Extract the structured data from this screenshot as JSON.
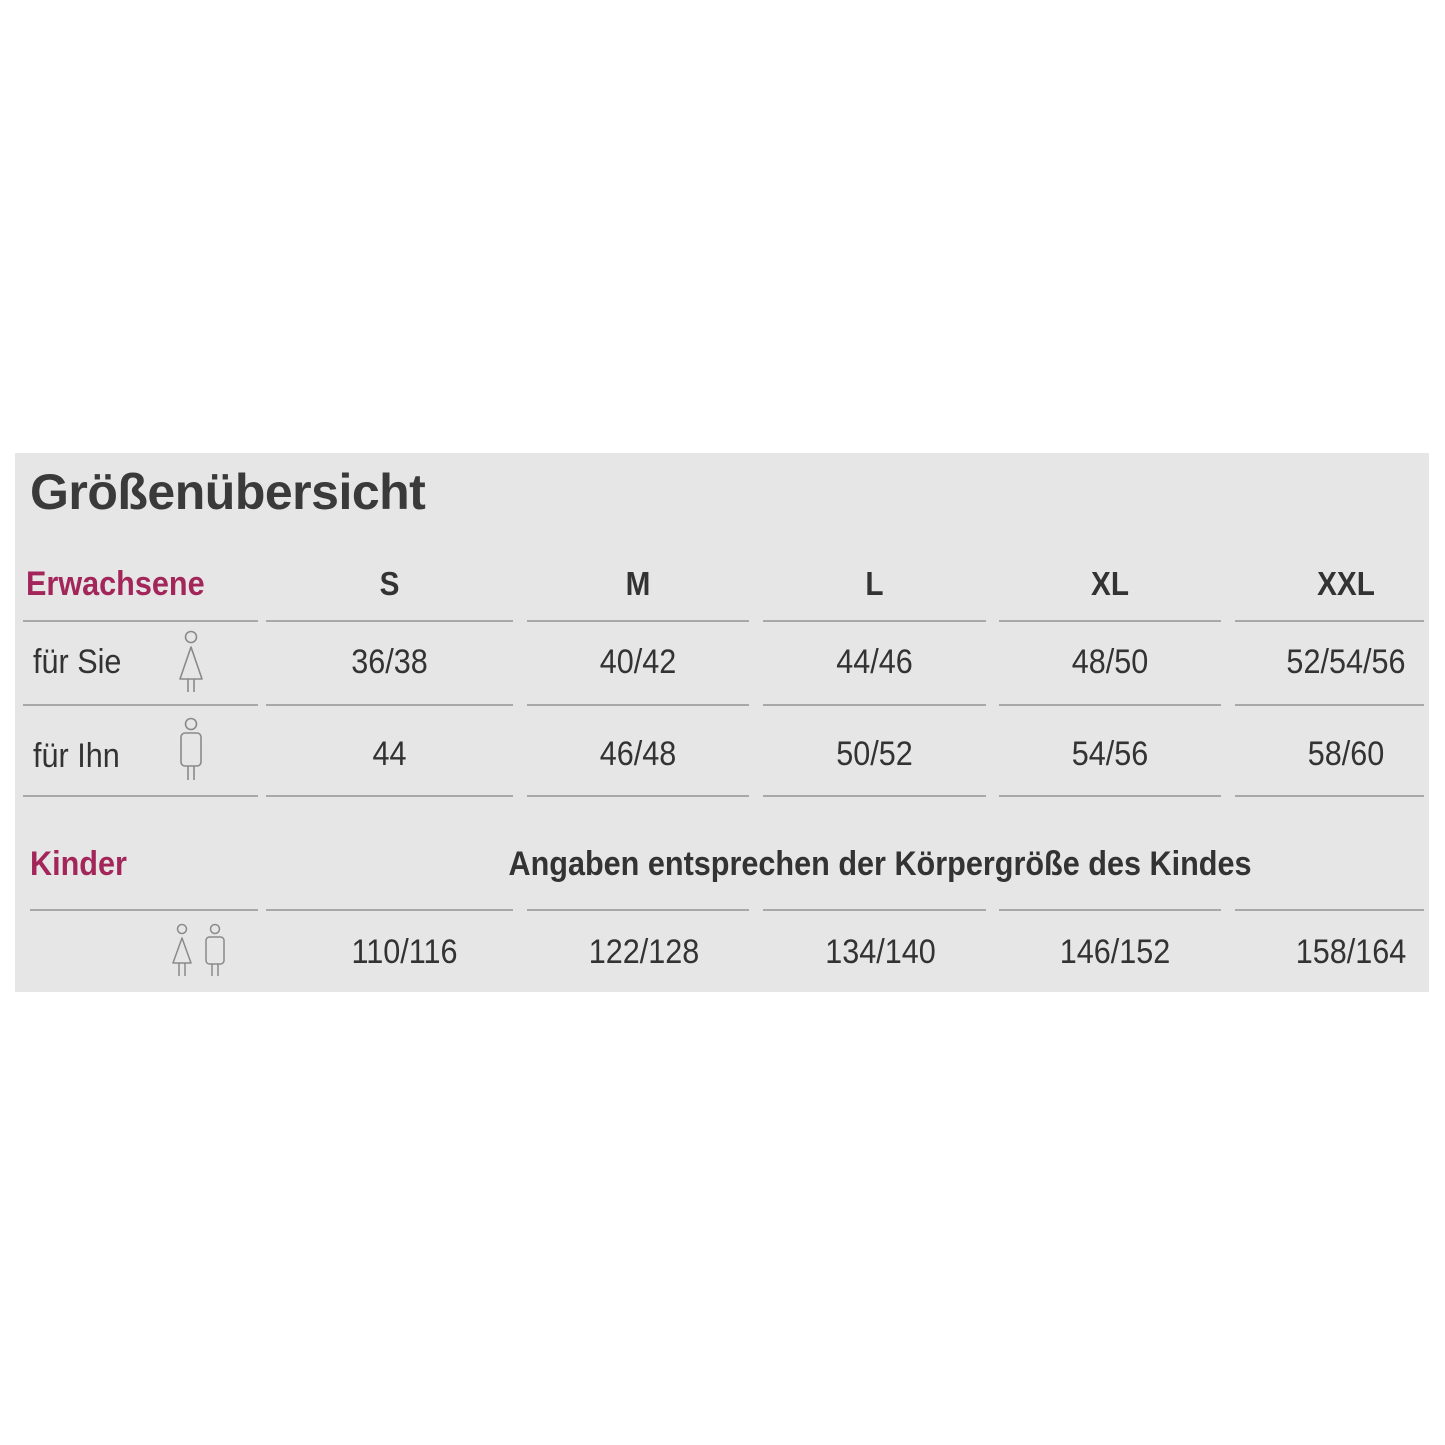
{
  "title": "Größenübersicht",
  "adults": {
    "label": "Erwachsene",
    "sizes": [
      "S",
      "M",
      "L",
      "XL",
      "XXL"
    ],
    "rows": [
      {
        "label": "für Sie",
        "icon": "woman-icon",
        "values": [
          "36/38",
          "40/42",
          "44/46",
          "48/50",
          "52/54/56"
        ]
      },
      {
        "label": "für Ihn",
        "icon": "man-icon",
        "values": [
          "44",
          "46/48",
          "50/52",
          "54/56",
          "58/60"
        ]
      }
    ]
  },
  "children": {
    "label": "Kinder",
    "note": "Angaben entsprechen der Körpergröße des Kindes",
    "icon": "children-icon",
    "values": [
      "110/116",
      "122/128",
      "134/140",
      "146/152",
      "158/164"
    ]
  },
  "colors": {
    "accent": "#a3265a",
    "background": "#e6e6e6",
    "text": "#333333",
    "rule": "#a8a8a8"
  }
}
